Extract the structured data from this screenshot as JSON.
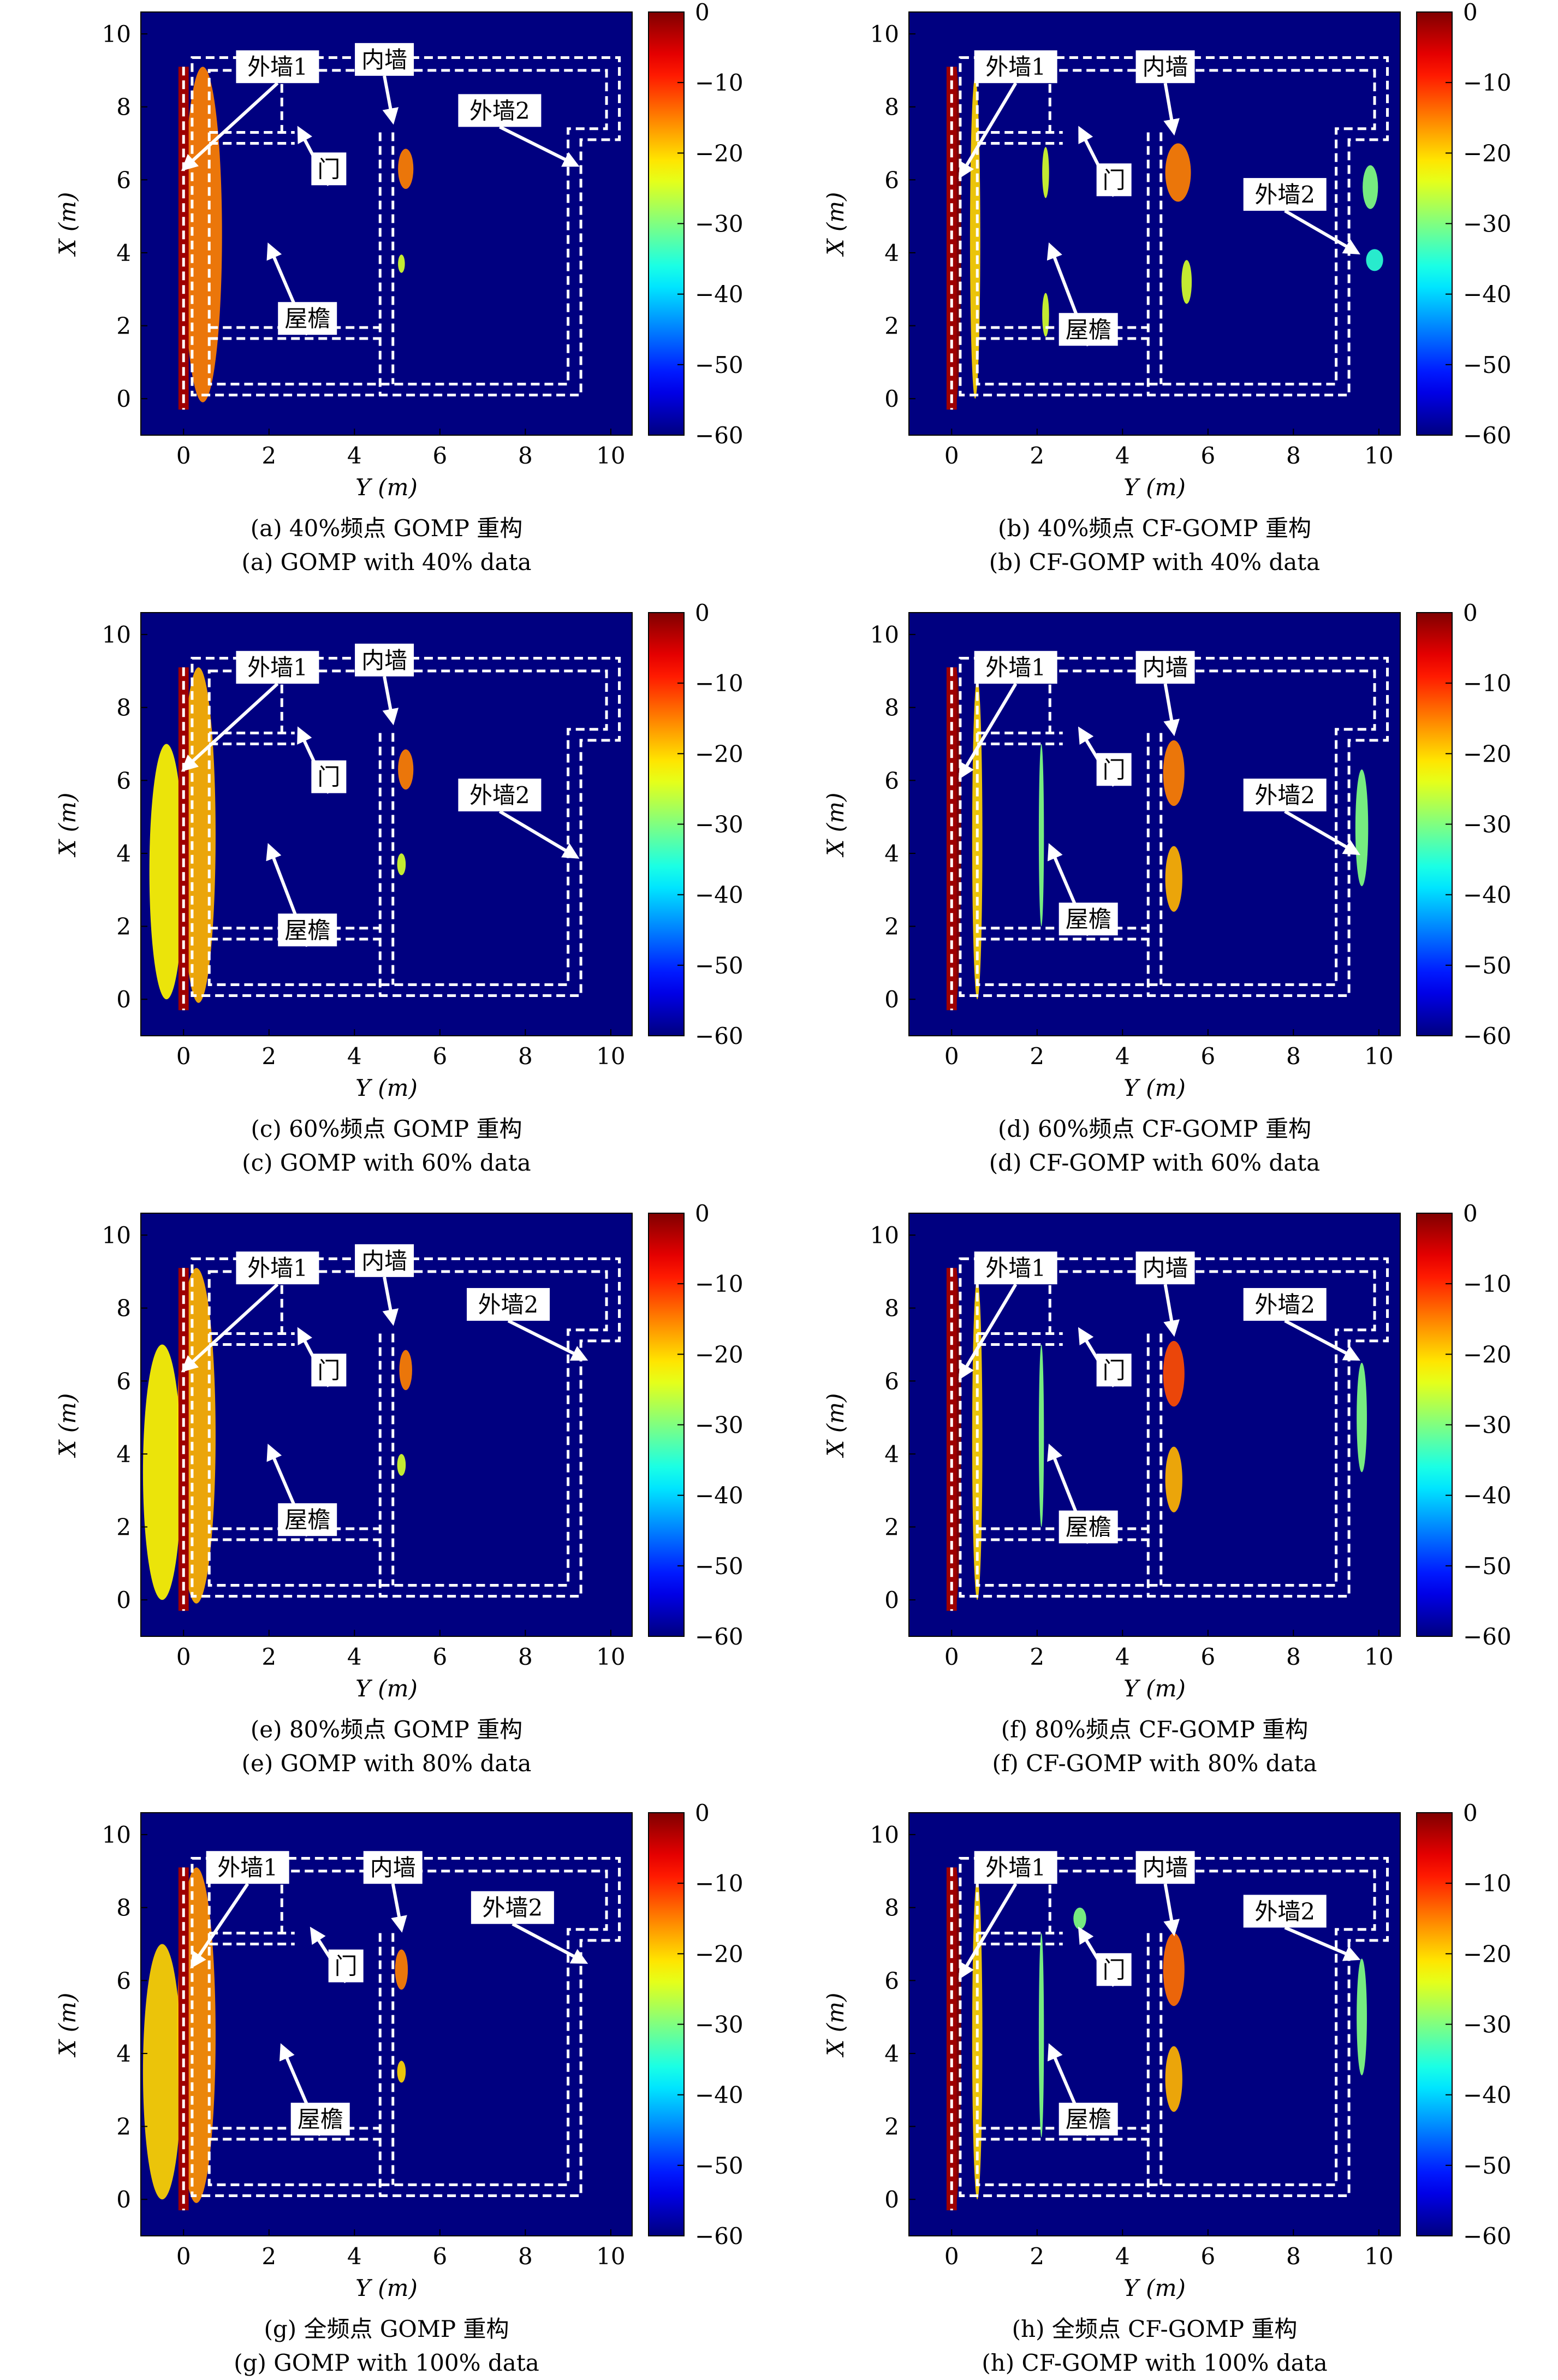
{
  "chart_data": [
    {
      "type": "heatmap",
      "panel": "a",
      "caption_cn": "(a) 40%频点 GOMP 重构",
      "caption_en": "(a) GOMP with 40% data",
      "xlabel": "Y (m)",
      "ylabel": "X (m)",
      "xlim": [
        -1,
        10.5
      ],
      "ylim": [
        -1,
        10.6
      ],
      "xticks": [
        0,
        2,
        4,
        6,
        8,
        10
      ],
      "yticks": [
        0,
        2,
        4,
        6,
        8,
        10
      ],
      "colorbar": {
        "range": [
          -60,
          0
        ],
        "ticks": [
          0,
          -10,
          -20,
          -30,
          -40,
          -50,
          -60
        ],
        "colormap": "jet"
      },
      "annotations": [
        {
          "label": "外墙1",
          "box": [
            2.2,
            9.1
          ],
          "arrow_to": [
            0.0,
            6.3
          ]
        },
        {
          "label": "内墙",
          "box": [
            4.7,
            9.3
          ],
          "arrow_to": [
            4.9,
            7.6
          ]
        },
        {
          "label": "外墙2",
          "box": [
            7.4,
            7.9
          ],
          "arrow_to": [
            9.2,
            6.4
          ]
        },
        {
          "label": "门",
          "box": [
            3.4,
            6.3
          ],
          "arrow_to": [
            2.7,
            7.4
          ]
        },
        {
          "label": "屋檐",
          "box": [
            2.9,
            2.2
          ],
          "arrow_to": [
            2.0,
            4.2
          ]
        }
      ],
      "intensity_regions": [
        {
          "y": 0.0,
          "x": 4.5,
          "sy": 0.1,
          "sx": 4.6,
          "db": 0
        },
        {
          "y": 0.45,
          "x": 4.5,
          "sy": 0.45,
          "sx": 4.6,
          "db": -15
        },
        {
          "y": 5.2,
          "x": 6.3,
          "sy": 0.18,
          "sx": 0.55,
          "db": -15
        },
        {
          "y": 5.1,
          "x": 3.7,
          "sy": 0.08,
          "sx": 0.25,
          "db": -25
        }
      ]
    },
    {
      "type": "heatmap",
      "panel": "b",
      "caption_cn": "(b) 40%频点 CF-GOMP 重构",
      "caption_en": "(b) CF-GOMP with 40% data",
      "xlabel": "Y (m)",
      "ylabel": "X (m)",
      "xlim": [
        -1,
        10.5
      ],
      "ylim": [
        -1,
        10.6
      ],
      "xticks": [
        0,
        2,
        4,
        6,
        8,
        10
      ],
      "yticks": [
        0,
        2,
        4,
        6,
        8,
        10
      ],
      "colorbar": {
        "range": [
          -60,
          0
        ],
        "ticks": [
          0,
          -10,
          -20,
          -30,
          -40,
          -50,
          -60
        ],
        "colormap": "jet"
      },
      "annotations": [
        {
          "label": "外墙1",
          "box": [
            1.5,
            9.1
          ],
          "arrow_to": [
            0.2,
            6.1
          ]
        },
        {
          "label": "内墙",
          "box": [
            5.0,
            9.1
          ],
          "arrow_to": [
            5.2,
            7.3
          ]
        },
        {
          "label": "外墙2",
          "box": [
            7.8,
            5.6
          ],
          "arrow_to": [
            9.5,
            4.0
          ]
        },
        {
          "label": "门",
          "box": [
            3.8,
            6.0
          ],
          "arrow_to": [
            3.0,
            7.4
          ]
        },
        {
          "label": "屋檐",
          "box": [
            3.2,
            1.9
          ],
          "arrow_to": [
            2.3,
            4.2
          ]
        }
      ],
      "intensity_regions": [
        {
          "y": 0.1,
          "x": 4.5,
          "sy": 0.12,
          "sx": 4.6,
          "db": 0
        },
        {
          "y": 0.55,
          "x": 4.4,
          "sy": 0.12,
          "sx": 4.4,
          "db": -20
        },
        {
          "y": 2.2,
          "x": 6.2,
          "sy": 0.08,
          "sx": 0.7,
          "db": -25
        },
        {
          "y": 2.2,
          "x": 2.3,
          "sy": 0.08,
          "sx": 0.6,
          "db": -25
        },
        {
          "y": 5.3,
          "x": 6.2,
          "sy": 0.3,
          "sx": 0.8,
          "db": -15
        },
        {
          "y": 5.5,
          "x": 3.2,
          "sy": 0.12,
          "sx": 0.6,
          "db": -25
        },
        {
          "y": 9.8,
          "x": 5.8,
          "sy": 0.18,
          "sx": 0.6,
          "db": -30
        },
        {
          "y": 9.9,
          "x": 3.8,
          "sy": 0.2,
          "sx": 0.3,
          "db": -35
        }
      ]
    },
    {
      "type": "heatmap",
      "panel": "c",
      "caption_cn": "(c) 60%频点 GOMP 重构",
      "caption_en": "(c) GOMP with 60% data",
      "xlabel": "Y (m)",
      "ylabel": "X (m)",
      "xlim": [
        -1,
        10.5
      ],
      "ylim": [
        -1,
        10.6
      ],
      "xticks": [
        0,
        2,
        4,
        6,
        8,
        10
      ],
      "yticks": [
        0,
        2,
        4,
        6,
        8,
        10
      ],
      "colorbar": {
        "range": [
          -60,
          0
        ],
        "ticks": [
          0,
          -10,
          -20,
          -30,
          -40,
          -50,
          -60
        ],
        "colormap": "jet"
      },
      "annotations": [
        {
          "label": "外墙1",
          "box": [
            2.2,
            9.1
          ],
          "arrow_to": [
            0.0,
            6.3
          ]
        },
        {
          "label": "内墙",
          "box": [
            4.7,
            9.3
          ],
          "arrow_to": [
            4.9,
            7.6
          ]
        },
        {
          "label": "外墙2",
          "box": [
            7.4,
            5.6
          ],
          "arrow_to": [
            9.2,
            3.9
          ]
        },
        {
          "label": "门",
          "box": [
            3.4,
            6.1
          ],
          "arrow_to": [
            2.7,
            7.4
          ]
        },
        {
          "label": "屋檐",
          "box": [
            2.9,
            1.9
          ],
          "arrow_to": [
            2.0,
            4.2
          ]
        }
      ],
      "intensity_regions": [
        {
          "y": 0.0,
          "x": 4.5,
          "sy": 0.1,
          "sx": 4.6,
          "db": 0
        },
        {
          "y": 0.35,
          "x": 4.5,
          "sy": 0.4,
          "sx": 4.6,
          "db": -18
        },
        {
          "y": -0.4,
          "x": 3.5,
          "sy": 0.4,
          "sx": 3.5,
          "db": -22
        },
        {
          "y": 5.2,
          "x": 6.3,
          "sy": 0.18,
          "sx": 0.55,
          "db": -15
        },
        {
          "y": 5.1,
          "x": 3.7,
          "sy": 0.1,
          "sx": 0.3,
          "db": -25
        }
      ]
    },
    {
      "type": "heatmap",
      "panel": "d",
      "caption_cn": "(d) 60%频点 CF-GOMP 重构",
      "caption_en": "(d) CF-GOMP with 60% data",
      "xlabel": "Y (m)",
      "ylabel": "X (m)",
      "xlim": [
        -1,
        10.5
      ],
      "ylim": [
        -1,
        10.6
      ],
      "xticks": [
        0,
        2,
        4,
        6,
        8,
        10
      ],
      "yticks": [
        0,
        2,
        4,
        6,
        8,
        10
      ],
      "colorbar": {
        "range": [
          -60,
          0
        ],
        "ticks": [
          0,
          -10,
          -20,
          -30,
          -40,
          -50,
          -60
        ],
        "colormap": "jet"
      },
      "annotations": [
        {
          "label": "外墙1",
          "box": [
            1.5,
            9.1
          ],
          "arrow_to": [
            0.2,
            6.1
          ]
        },
        {
          "label": "内墙",
          "box": [
            5.0,
            9.1
          ],
          "arrow_to": [
            5.2,
            7.3
          ]
        },
        {
          "label": "外墙2",
          "box": [
            7.8,
            5.6
          ],
          "arrow_to": [
            9.5,
            4.0
          ]
        },
        {
          "label": "门",
          "box": [
            3.8,
            6.3
          ],
          "arrow_to": [
            3.0,
            7.4
          ]
        },
        {
          "label": "屋檐",
          "box": [
            3.2,
            2.2
          ],
          "arrow_to": [
            2.3,
            4.2
          ]
        }
      ],
      "intensity_regions": [
        {
          "y": 0.1,
          "x": 4.5,
          "sy": 0.12,
          "sx": 4.6,
          "db": 0
        },
        {
          "y": 0.6,
          "x": 4.4,
          "sy": 0.12,
          "sx": 4.4,
          "db": -20
        },
        {
          "y": 2.1,
          "x": 4.5,
          "sy": 0.06,
          "sx": 2.5,
          "db": -30
        },
        {
          "y": 5.2,
          "x": 6.2,
          "sy": 0.25,
          "sx": 0.9,
          "db": -15
        },
        {
          "y": 5.2,
          "x": 3.3,
          "sy": 0.2,
          "sx": 0.9,
          "db": -18
        },
        {
          "y": 9.6,
          "x": 4.7,
          "sy": 0.15,
          "sx": 1.6,
          "db": -30
        }
      ]
    },
    {
      "type": "heatmap",
      "panel": "e",
      "caption_cn": "(e) 80%频点 GOMP 重构",
      "caption_en": "(e) GOMP with 80% data",
      "xlabel": "Y (m)",
      "ylabel": "X (m)",
      "xlim": [
        -1,
        10.5
      ],
      "ylim": [
        -1,
        10.6
      ],
      "xticks": [
        0,
        2,
        4,
        6,
        8,
        10
      ],
      "yticks": [
        0,
        2,
        4,
        6,
        8,
        10
      ],
      "colorbar": {
        "range": [
          -60,
          0
        ],
        "ticks": [
          0,
          -10,
          -20,
          -30,
          -40,
          -50,
          -60
        ],
        "colormap": "jet"
      },
      "annotations": [
        {
          "label": "外墙1",
          "box": [
            2.2,
            9.1
          ],
          "arrow_to": [
            0.0,
            6.3
          ]
        },
        {
          "label": "内墙",
          "box": [
            4.7,
            9.3
          ],
          "arrow_to": [
            4.9,
            7.6
          ]
        },
        {
          "label": "外墙2",
          "box": [
            7.6,
            8.1
          ],
          "arrow_to": [
            9.4,
            6.6
          ]
        },
        {
          "label": "门",
          "box": [
            3.4,
            6.3
          ],
          "arrow_to": [
            2.7,
            7.4
          ]
        },
        {
          "label": "屋檐",
          "box": [
            2.9,
            2.2
          ],
          "arrow_to": [
            2.0,
            4.2
          ]
        }
      ],
      "intensity_regions": [
        {
          "y": 0.0,
          "x": 4.5,
          "sy": 0.1,
          "sx": 4.6,
          "db": 0
        },
        {
          "y": 0.3,
          "x": 4.5,
          "sy": 0.45,
          "sx": 4.6,
          "db": -18
        },
        {
          "y": -0.5,
          "x": 3.5,
          "sy": 0.45,
          "sx": 3.5,
          "db": -22
        },
        {
          "y": 5.2,
          "x": 6.3,
          "sy": 0.15,
          "sx": 0.55,
          "db": -15
        },
        {
          "y": 5.1,
          "x": 3.7,
          "sy": 0.1,
          "sx": 0.3,
          "db": -25
        }
      ]
    },
    {
      "type": "heatmap",
      "panel": "f",
      "caption_cn": "(f) 80%频点 CF-GOMP 重构",
      "caption_en": "(f) CF-GOMP with 80% data",
      "xlabel": "Y (m)",
      "ylabel": "X (m)",
      "xlim": [
        -1,
        10.5
      ],
      "ylim": [
        -1,
        10.6
      ],
      "xticks": [
        0,
        2,
        4,
        6,
        8,
        10
      ],
      "yticks": [
        0,
        2,
        4,
        6,
        8,
        10
      ],
      "colorbar": {
        "range": [
          -60,
          0
        ],
        "ticks": [
          0,
          -10,
          -20,
          -30,
          -40,
          -50,
          -60
        ],
        "colormap": "jet"
      },
      "annotations": [
        {
          "label": "外墙1",
          "box": [
            1.5,
            9.1
          ],
          "arrow_to": [
            0.2,
            6.1
          ]
        },
        {
          "label": "内墙",
          "box": [
            5.0,
            9.1
          ],
          "arrow_to": [
            5.2,
            7.3
          ]
        },
        {
          "label": "外墙2",
          "box": [
            7.8,
            8.1
          ],
          "arrow_to": [
            9.5,
            6.6
          ]
        },
        {
          "label": "门",
          "box": [
            3.8,
            6.3
          ],
          "arrow_to": [
            3.0,
            7.4
          ]
        },
        {
          "label": "屋檐",
          "box": [
            3.2,
            2.0
          ],
          "arrow_to": [
            2.3,
            4.2
          ]
        }
      ],
      "intensity_regions": [
        {
          "y": 0.1,
          "x": 4.5,
          "sy": 0.12,
          "sx": 4.6,
          "db": 0
        },
        {
          "y": 0.6,
          "x": 4.4,
          "sy": 0.12,
          "sx": 4.4,
          "db": -20
        },
        {
          "y": 2.1,
          "x": 4.5,
          "sy": 0.06,
          "sx": 2.5,
          "db": -30
        },
        {
          "y": 5.2,
          "x": 6.2,
          "sy": 0.25,
          "sx": 0.9,
          "db": -12
        },
        {
          "y": 5.2,
          "x": 3.3,
          "sy": 0.2,
          "sx": 0.9,
          "db": -18
        },
        {
          "y": 9.6,
          "x": 5.0,
          "sy": 0.12,
          "sx": 1.5,
          "db": -30
        }
      ]
    },
    {
      "type": "heatmap",
      "panel": "g",
      "caption_cn": "(g) 全频点 GOMP 重构",
      "caption_en": "(g) GOMP with 100% data",
      "xlabel": "Y (m)",
      "ylabel": "X (m)",
      "xlim": [
        -1,
        10.5
      ],
      "ylim": [
        -1,
        10.6
      ],
      "xticks": [
        0,
        2,
        4,
        6,
        8,
        10
      ],
      "yticks": [
        0,
        2,
        4,
        6,
        8,
        10
      ],
      "colorbar": {
        "range": [
          -60,
          0
        ],
        "ticks": [
          0,
          -10,
          -20,
          -30,
          -40,
          -50,
          -60
        ],
        "colormap": "jet"
      },
      "annotations": [
        {
          "label": "外墙1",
          "box": [
            1.5,
            9.1
          ],
          "arrow_to": [
            0.2,
            6.4
          ]
        },
        {
          "label": "内墙",
          "box": [
            4.9,
            9.1
          ],
          "arrow_to": [
            5.1,
            7.4
          ]
        },
        {
          "label": "外墙2",
          "box": [
            7.7,
            8.0
          ],
          "arrow_to": [
            9.4,
            6.5
          ]
        },
        {
          "label": "门",
          "box": [
            3.8,
            6.4
          ],
          "arrow_to": [
            3.0,
            7.4
          ]
        },
        {
          "label": "屋檐",
          "box": [
            3.2,
            2.2
          ],
          "arrow_to": [
            2.3,
            4.2
          ]
        }
      ],
      "intensity_regions": [
        {
          "y": 0.0,
          "x": 4.5,
          "sy": 0.1,
          "sx": 4.6,
          "db": 0
        },
        {
          "y": 0.3,
          "x": 4.5,
          "sy": 0.45,
          "sx": 4.6,
          "db": -16
        },
        {
          "y": -0.5,
          "x": 3.5,
          "sy": 0.45,
          "sx": 3.5,
          "db": -20
        },
        {
          "y": 5.1,
          "x": 6.3,
          "sy": 0.15,
          "sx": 0.55,
          "db": -15
        },
        {
          "y": 5.1,
          "x": 3.5,
          "sy": 0.1,
          "sx": 0.3,
          "db": -20
        }
      ]
    },
    {
      "type": "heatmap",
      "panel": "h",
      "caption_cn": "(h) 全频点 CF-GOMP 重构",
      "caption_en": "(h) CF-GOMP with 100% data",
      "xlabel": "Y (m)",
      "ylabel": "X (m)",
      "xlim": [
        -1,
        10.5
      ],
      "ylim": [
        -1,
        10.6
      ],
      "xticks": [
        0,
        2,
        4,
        6,
        8,
        10
      ],
      "yticks": [
        0,
        2,
        4,
        6,
        8,
        10
      ],
      "colorbar": {
        "range": [
          -60,
          0
        ],
        "ticks": [
          0,
          -10,
          -20,
          -30,
          -40,
          -50,
          -60
        ],
        "colormap": "jet"
      },
      "annotations": [
        {
          "label": "外墙1",
          "box": [
            1.5,
            9.1
          ],
          "arrow_to": [
            0.2,
            6.1
          ]
        },
        {
          "label": "内墙",
          "box": [
            5.0,
            9.1
          ],
          "arrow_to": [
            5.2,
            7.3
          ]
        },
        {
          "label": "外墙2",
          "box": [
            7.8,
            7.9
          ],
          "arrow_to": [
            9.5,
            6.6
          ]
        },
        {
          "label": "门",
          "box": [
            3.8,
            6.3
          ],
          "arrow_to": [
            3.0,
            7.4
          ]
        },
        {
          "label": "屋檐",
          "box": [
            3.2,
            2.2
          ],
          "arrow_to": [
            2.3,
            4.2
          ]
        }
      ],
      "intensity_regions": [
        {
          "y": 0.1,
          "x": 4.5,
          "sy": 0.12,
          "sx": 4.6,
          "db": 0
        },
        {
          "y": 0.6,
          "x": 4.4,
          "sy": 0.12,
          "sx": 4.4,
          "db": -20
        },
        {
          "y": 2.1,
          "x": 4.5,
          "sy": 0.06,
          "sx": 2.8,
          "db": -30
        },
        {
          "y": 5.2,
          "x": 6.3,
          "sy": 0.25,
          "sx": 1.0,
          "db": -14
        },
        {
          "y": 5.2,
          "x": 3.3,
          "sy": 0.2,
          "sx": 0.9,
          "db": -18
        },
        {
          "y": 3.0,
          "x": 7.7,
          "sy": 0.15,
          "sx": 0.3,
          "db": -30
        },
        {
          "y": 9.6,
          "x": 5.0,
          "sy": 0.12,
          "sx": 1.6,
          "db": -30
        }
      ]
    }
  ]
}
